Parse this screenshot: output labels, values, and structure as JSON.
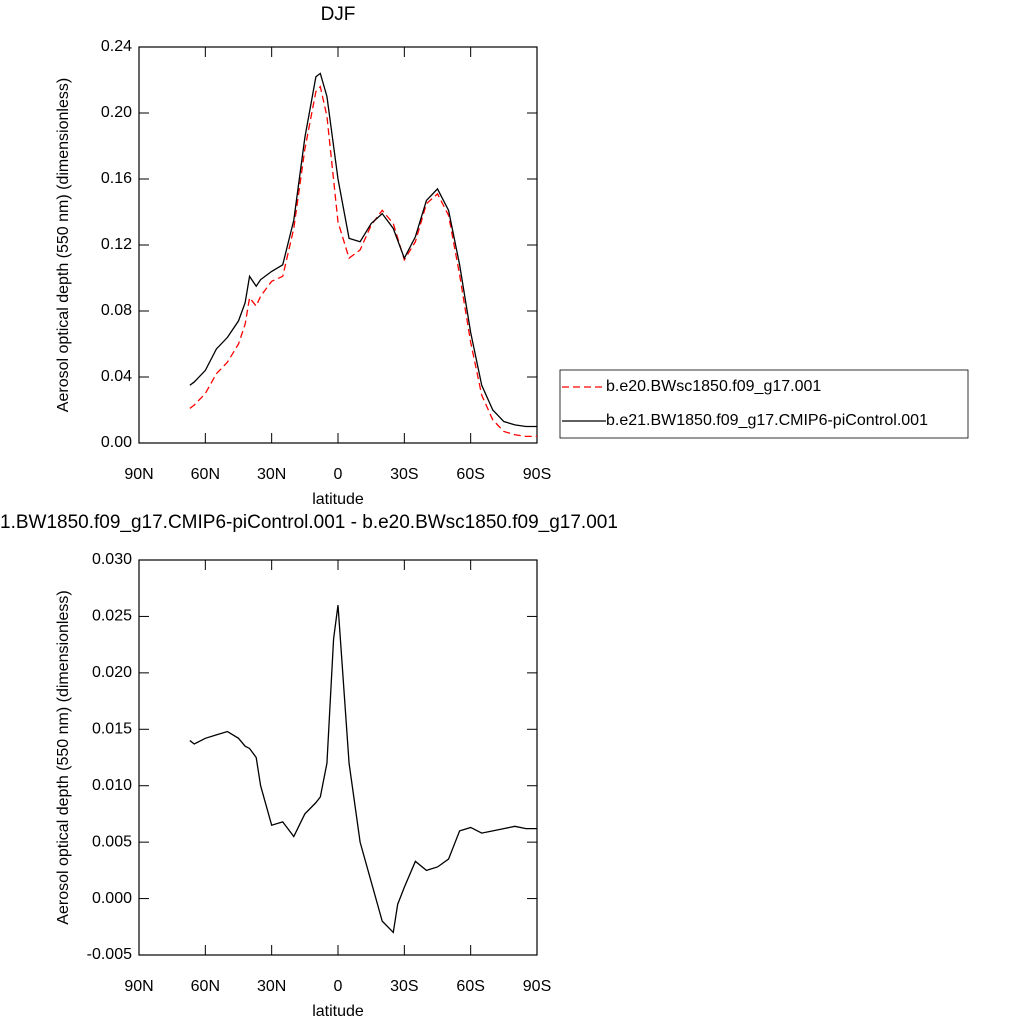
{
  "chart_data": [
    {
      "type": "line",
      "title": "DJF",
      "x_label": "latitude",
      "y_label": "Aerosol optical depth (550 nm) (dimensionless)",
      "x": [
        67,
        65,
        60,
        55,
        50,
        45,
        42,
        40,
        37,
        35,
        30,
        25,
        20,
        15,
        10,
        8,
        5,
        0,
        -5,
        -10,
        -15,
        -20,
        -25,
        -30,
        -35,
        -40,
        -45,
        -50,
        -55,
        -60,
        -65,
        -70,
        -75,
        -80,
        -85,
        -90
      ],
      "series": [
        {
          "name": "b.e20.BWsc1850.f09_g17.001",
          "color": "#ff0000",
          "line_style": "dashed",
          "values": [
            0.021,
            0.023,
            0.03,
            0.042,
            0.049,
            0.06,
            0.072,
            0.088,
            0.083,
            0.089,
            0.098,
            0.101,
            0.13,
            0.178,
            0.213,
            0.216,
            0.198,
            0.134,
            0.112,
            0.117,
            0.132,
            0.141,
            0.133,
            0.111,
            0.122,
            0.145,
            0.151,
            0.138,
            0.102,
            0.061,
            0.029,
            0.014,
            0.007,
            0.005,
            0.004,
            0.004
          ]
        },
        {
          "name": "b.e21.BW1850.f09_g17.CMIP6-piControl.001",
          "color": "#000000",
          "line_style": "solid",
          "values": [
            0.035,
            0.037,
            0.044,
            0.057,
            0.064,
            0.074,
            0.085,
            0.101,
            0.095,
            0.099,
            0.104,
            0.108,
            0.135,
            0.185,
            0.222,
            0.224,
            0.21,
            0.16,
            0.124,
            0.122,
            0.133,
            0.139,
            0.13,
            0.112,
            0.125,
            0.147,
            0.154,
            0.141,
            0.108,
            0.067,
            0.035,
            0.02,
            0.013,
            0.011,
            0.01,
            0.01
          ]
        }
      ],
      "xlim": [
        90,
        -90
      ],
      "xticks": [
        {
          "value": 90,
          "label": "90N"
        },
        {
          "value": 60,
          "label": "60N"
        },
        {
          "value": 30,
          "label": "30N"
        },
        0,
        {
          "value": -30,
          "label": "30S"
        },
        {
          "value": -60,
          "label": "60S"
        },
        {
          "value": -90,
          "label": "90S"
        }
      ],
      "ylim": [
        0,
        0.24
      ],
      "yticks": [
        {
          "value": 0,
          "label": "0.00"
        },
        0.04,
        0.08,
        0.12,
        0.16,
        {
          "value": 0.2,
          "label": "0.20"
        },
        0.24
      ],
      "legend": "right"
    },
    {
      "type": "line",
      "title": "1.BW1850.f09_g17.CMIP6-piControl.001 - b.e20.BWsc1850.f09_g17.001",
      "x_label": "latitude",
      "y_label": "Aerosol optical depth (550 nm) (dimensionless)",
      "x": [
        67,
        65,
        60,
        55,
        50,
        45,
        42,
        40,
        37,
        35,
        30,
        25,
        20,
        15,
        10,
        8,
        5,
        2,
        0,
        -5,
        -10,
        -15,
        -20,
        -25,
        -27,
        -30,
        -35,
        -40,
        -45,
        -50,
        -55,
        -60,
        -65,
        -70,
        -75,
        -80,
        -85,
        -90
      ],
      "series": [
        {
          "color": "#000000",
          "line_style": "solid",
          "values": [
            0.014,
            0.0137,
            0.0142,
            0.0145,
            0.0148,
            0.0142,
            0.0135,
            0.0133,
            0.0125,
            0.01,
            0.0065,
            0.0068,
            0.0055,
            0.0075,
            0.0085,
            0.009,
            0.012,
            0.023,
            0.026,
            0.012,
            0.005,
            0.0015,
            -0.002,
            -0.003,
            -0.0005,
            0.001,
            0.0033,
            0.0025,
            0.0028,
            0.0035,
            0.006,
            0.0063,
            0.0058,
            0.006,
            0.0062,
            0.0064,
            0.0062,
            0.0062
          ]
        }
      ],
      "xlim": [
        90,
        -90
      ],
      "xticks": [
        {
          "value": 90,
          "label": "90N"
        },
        {
          "value": 60,
          "label": "60N"
        },
        {
          "value": 30,
          "label": "30N"
        },
        0,
        {
          "value": -30,
          "label": "30S"
        },
        {
          "value": -60,
          "label": "60S"
        },
        {
          "value": -90,
          "label": "90S"
        }
      ],
      "ylim": [
        -0.005,
        0.03
      ],
      "yticks": [
        -0.005,
        {
          "value": 0,
          "label": "0.000"
        },
        0.005,
        {
          "value": 0.01,
          "label": "0.010"
        },
        0.015,
        {
          "value": 0.02,
          "label": "0.020"
        },
        0.025,
        {
          "value": 0.03,
          "label": "0.030"
        }
      ]
    }
  ]
}
